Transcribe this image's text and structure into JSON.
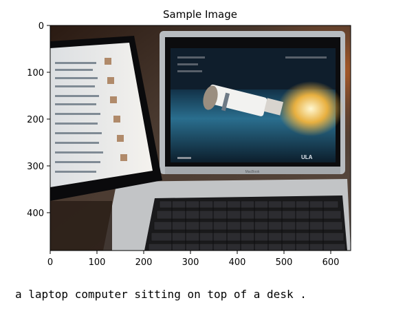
{
  "figure": {
    "title": "Sample Image",
    "x_ticks": [
      "0",
      "100",
      "200",
      "300",
      "400",
      "500",
      "600"
    ],
    "y_ticks": [
      "0",
      "100",
      "200",
      "300",
      "400"
    ]
  },
  "caption": "a laptop computer sitting on top of a desk .",
  "photo": {
    "screen_text": "ULA",
    "laptop_brand": "MacBook"
  },
  "colors": {
    "desk": "#3a2f27",
    "screen_bg": "#0f1e2c",
    "tablet_screen": "#e9ecef",
    "rocket": "#f2f2f0"
  }
}
